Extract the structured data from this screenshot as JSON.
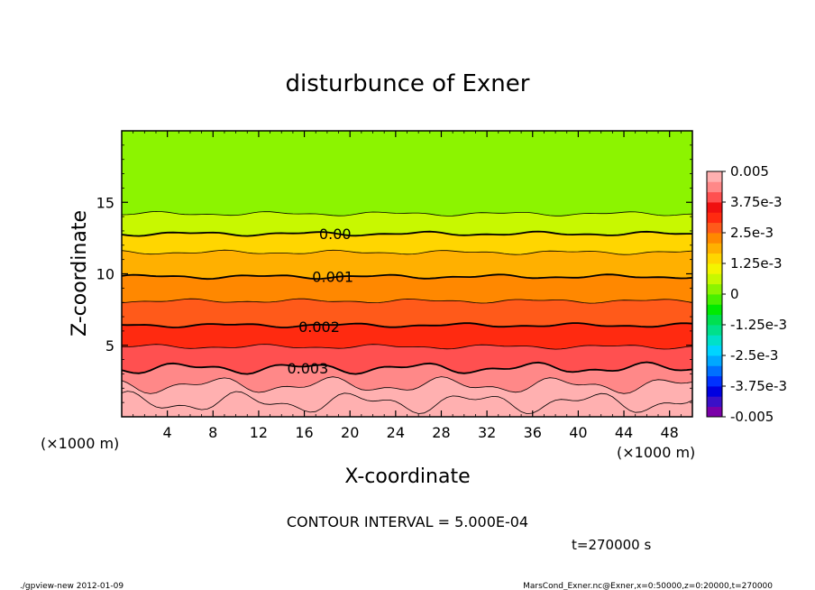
{
  "chart_data": {
    "type": "contour",
    "title": "disturbunce of Exner",
    "xlabel": "X-coordinate",
    "ylabel": "Z-coordinate",
    "x_unit_label": "(×1000 m)",
    "y_unit_label": "(×1000 m)",
    "xlim": [
      0,
      50
    ],
    "ylim": [
      0,
      20
    ],
    "x_ticks": [
      4,
      8,
      12,
      16,
      20,
      24,
      28,
      32,
      36,
      40,
      44,
      48
    ],
    "y_ticks": [
      5,
      10,
      15
    ],
    "contour_interval_text": "CONTOUR INTERVAL = 5.000E-04",
    "time_text": "t=270000 s",
    "footer_left": "./gpview-new   2012-01-09",
    "footer_right": "MarsCond_Exner.nc@Exner,x=0:50000,z=0:20000,t=270000",
    "colorbar": {
      "range": [
        -0.005,
        0.005
      ],
      "labels": [
        "0.005",
        "3.75e-3",
        "2.5e-3",
        "1.25e-3",
        "0",
        "-1.25e-3",
        "-2.5e-3",
        "-3.75e-3",
        "-0.005"
      ],
      "colors": [
        "#7a00a8",
        "#3a10c8",
        "#0000e0",
        "#0032ff",
        "#0070ff",
        "#00a8ff",
        "#00d4ff",
        "#00e0c8",
        "#00e08a",
        "#00e050",
        "#00ea00",
        "#48f000",
        "#8cf400",
        "#c8f800",
        "#f4f400",
        "#ffd600",
        "#ffb000",
        "#ff8800",
        "#ff5a1a",
        "#ff2a10",
        "#f01010",
        "#ff5050",
        "#ff8888",
        "#ffb0b0"
      ]
    },
    "contour_labels": [
      {
        "value": "0.00",
        "x": 18.7,
        "z": 12.8
      },
      {
        "value": "0.001",
        "x": 18.5,
        "z": 9.8
      },
      {
        "value": "0.002",
        "x": 17.3,
        "z": 6.3
      },
      {
        "value": "0.003",
        "x": 16.3,
        "z": 3.4
      }
    ],
    "profile": [
      {
        "level": "0.0050",
        "z": 0.0
      },
      {
        "level": "0.0045",
        "z": 1.0
      },
      {
        "level": "0.0040",
        "z": 2.2
      },
      {
        "level": "0.0035",
        "z": 3.4
      },
      {
        "level": "0.0030",
        "z": 4.9
      },
      {
        "level": "0.0025",
        "z": 6.4
      },
      {
        "level": "0.0020",
        "z": 8.1
      },
      {
        "level": "0.0015",
        "z": 9.8
      },
      {
        "level": "0.0010",
        "z": 11.5
      },
      {
        "level": "0.0005",
        "z": 12.8
      },
      {
        "level": "0.0000",
        "z": 14.2
      },
      {
        "level": "-0.0005",
        "z": 20.0
      }
    ]
  }
}
